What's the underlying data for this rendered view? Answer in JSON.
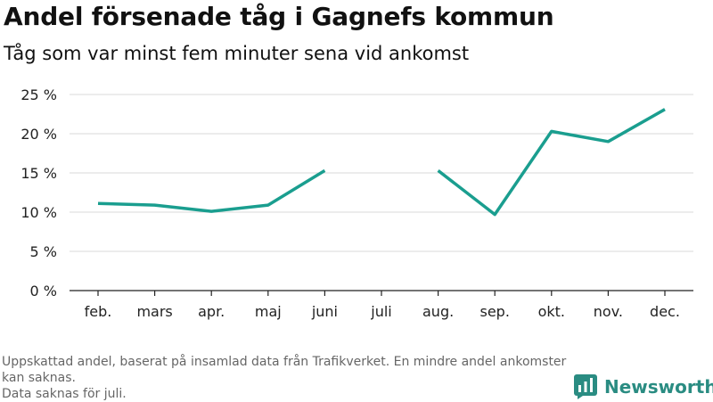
{
  "title": "Andel försenade tåg i Gagnefs kommun",
  "subtitle": "Tåg som var minst fem minuter sena vid ankomst",
  "footer": {
    "note_line1": "Uppskattad andel, baserat på insamlad data från Trafikverket. En mindre andel ankomster kan saknas.",
    "note_line2": "Data saknas för juli."
  },
  "brand": {
    "name": "Newsworthy",
    "icon": "newsworthy-logo-icon",
    "color": "#2a8c82"
  },
  "chart_data": {
    "type": "line",
    "title": "Andel försenade tåg i Gagnefs kommun",
    "subtitle": "Tåg som var minst fem minuter sena vid ankomst",
    "categories": [
      "feb.",
      "mars",
      "apr.",
      "maj",
      "juni",
      "juli",
      "aug.",
      "sep.",
      "okt.",
      "nov.",
      "dec."
    ],
    "values": [
      11.1,
      10.9,
      10.1,
      10.9,
      15.3,
      null,
      15.3,
      9.7,
      20.3,
      19.0,
      23.1
    ],
    "y_ticks": [
      "0 %",
      "5 %",
      "10 %",
      "15 %",
      "20 %",
      "25 %"
    ],
    "ylim": [
      0,
      25
    ],
    "grid": true,
    "line_color": "#1a9e8f"
  }
}
